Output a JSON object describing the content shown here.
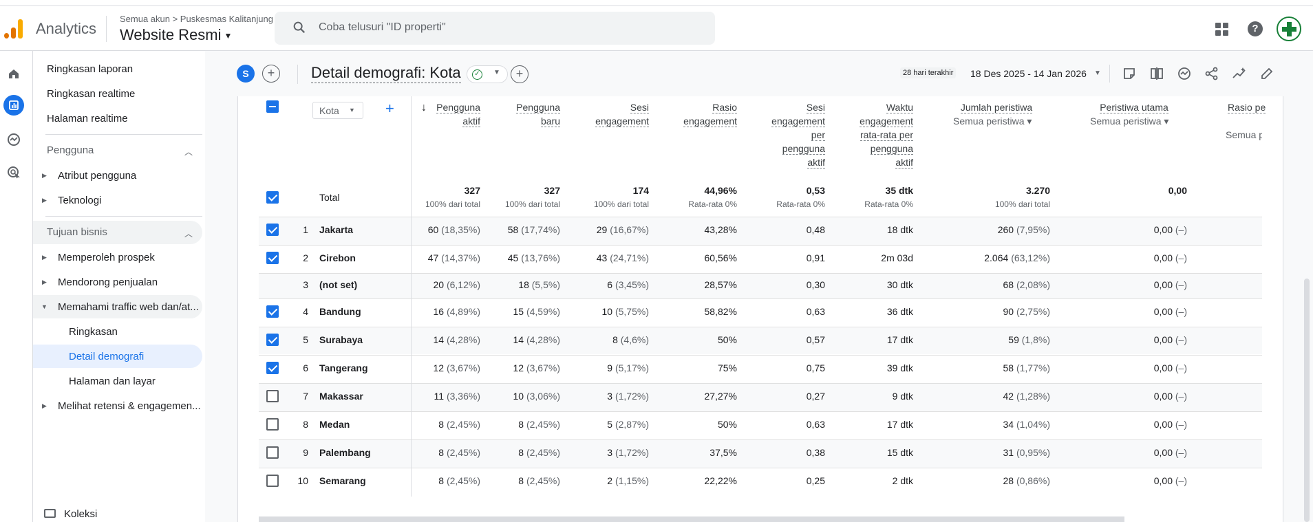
{
  "header": {
    "brand": "Analytics",
    "breadcrumb": "Semua akun > Puskesmas Kalitanjung",
    "property": "Website Resmi",
    "search_placeholder": "Coba telusuri \"ID properti\""
  },
  "nav": {
    "items_top": [
      "Ringkasan laporan",
      "Ringkasan realtime",
      "Halaman realtime"
    ],
    "section_pengguna": "Pengguna",
    "pengguna_items": [
      "Atribut pengguna",
      "Teknologi"
    ],
    "section_bisnis": "Tujuan bisnis",
    "bisnis_items": [
      "Memperoleh prospek",
      "Mendorong penjualan",
      "Memahami traffic web dan/at..."
    ],
    "traffic_subitems": [
      "Ringkasan",
      "Detail demografi",
      "Halaman dan layar"
    ],
    "retensi": "Melihat retensi & engagemen...",
    "koleksi": "Koleksi"
  },
  "toolbar": {
    "segment_initial": "S",
    "title": "Detail demografi: Kota",
    "date_chip": "28 hari terakhir",
    "date_range": "18 Des 2025 - 14 Jan 2026"
  },
  "table": {
    "dimension": "Kota",
    "headers": {
      "c1": [
        "Pengguna",
        "aktif"
      ],
      "c2": [
        "Pengguna",
        "baru"
      ],
      "c3": [
        "Sesi",
        "engagement"
      ],
      "c4": [
        "Rasio",
        "engagement"
      ],
      "c5": [
        "Sesi",
        "engagement",
        "per",
        "pengguna",
        "aktif"
      ],
      "c6": [
        "Waktu",
        "engagement",
        "rata-rata per",
        "pengguna",
        "aktif"
      ],
      "c7": [
        "Jumlah peristiwa"
      ],
      "c8": [
        "Peristiwa utama"
      ],
      "c9": [
        "Rasio pe"
      ]
    },
    "dropdowns": {
      "c7": "Semua peristiwa",
      "c8": "Semua peristiwa",
      "c9": "Semua p"
    },
    "total_label": "Total",
    "totals": [
      {
        "v": "327",
        "s": "100% dari total"
      },
      {
        "v": "327",
        "s": "100% dari total"
      },
      {
        "v": "174",
        "s": "100% dari total"
      },
      {
        "v": "44,96%",
        "s": "Rata-rata 0%"
      },
      {
        "v": "0,53",
        "s": "Rata-rata 0%"
      },
      {
        "v": "35 dtk",
        "s": "Rata-rata 0%"
      },
      {
        "v": "3.270",
        "s": "100% dari total"
      },
      {
        "v": "0,00",
        "s": ""
      }
    ],
    "rows": [
      {
        "idx": "1",
        "city": "Jakarta",
        "checked": true,
        "c1": "60",
        "p1": "(18,35%)",
        "c2": "58",
        "p2": "(17,74%)",
        "c3": "29",
        "p3": "(16,67%)",
        "c4": "43,28%",
        "c5": "0,48",
        "c6": "18 dtk",
        "c7": "260",
        "p7": "(7,95%)",
        "c8": "0,00",
        "p8": "(–)"
      },
      {
        "idx": "2",
        "city": "Cirebon",
        "checked": true,
        "c1": "47",
        "p1": "(14,37%)",
        "c2": "45",
        "p2": "(13,76%)",
        "c3": "43",
        "p3": "(24,71%)",
        "c4": "60,56%",
        "c5": "0,91",
        "c6": "2m 03d",
        "c7": "2.064",
        "p7": "(63,12%)",
        "c8": "0,00",
        "p8": "(–)"
      },
      {
        "idx": "3",
        "city": "(not set)",
        "checked": null,
        "c1": "20",
        "p1": "(6,12%)",
        "c2": "18",
        "p2": "(5,5%)",
        "c3": "6",
        "p3": "(3,45%)",
        "c4": "28,57%",
        "c5": "0,30",
        "c6": "30 dtk",
        "c7": "68",
        "p7": "(2,08%)",
        "c8": "0,00",
        "p8": "(–)"
      },
      {
        "idx": "4",
        "city": "Bandung",
        "checked": true,
        "c1": "16",
        "p1": "(4,89%)",
        "c2": "15",
        "p2": "(4,59%)",
        "c3": "10",
        "p3": "(5,75%)",
        "c4": "58,82%",
        "c5": "0,63",
        "c6": "36 dtk",
        "c7": "90",
        "p7": "(2,75%)",
        "c8": "0,00",
        "p8": "(–)"
      },
      {
        "idx": "5",
        "city": "Surabaya",
        "checked": true,
        "c1": "14",
        "p1": "(4,28%)",
        "c2": "14",
        "p2": "(4,28%)",
        "c3": "8",
        "p3": "(4,6%)",
        "c4": "50%",
        "c5": "0,57",
        "c6": "17 dtk",
        "c7": "59",
        "p7": "(1,8%)",
        "c8": "0,00",
        "p8": "(–)"
      },
      {
        "idx": "6",
        "city": "Tangerang",
        "checked": true,
        "c1": "12",
        "p1": "(3,67%)",
        "c2": "12",
        "p2": "(3,67%)",
        "c3": "9",
        "p3": "(5,17%)",
        "c4": "75%",
        "c5": "0,75",
        "c6": "39 dtk",
        "c7": "58",
        "p7": "(1,77%)",
        "c8": "0,00",
        "p8": "(–)"
      },
      {
        "idx": "7",
        "city": "Makassar",
        "checked": false,
        "c1": "11",
        "p1": "(3,36%)",
        "c2": "10",
        "p2": "(3,06%)",
        "c3": "3",
        "p3": "(1,72%)",
        "c4": "27,27%",
        "c5": "0,27",
        "c6": "9 dtk",
        "c7": "42",
        "p7": "(1,28%)",
        "c8": "0,00",
        "p8": "(–)"
      },
      {
        "idx": "8",
        "city": "Medan",
        "checked": false,
        "c1": "8",
        "p1": "(2,45%)",
        "c2": "8",
        "p2": "(2,45%)",
        "c3": "5",
        "p3": "(2,87%)",
        "c4": "50%",
        "c5": "0,63",
        "c6": "17 dtk",
        "c7": "34",
        "p7": "(1,04%)",
        "c8": "0,00",
        "p8": "(–)"
      },
      {
        "idx": "9",
        "city": "Palembang",
        "checked": false,
        "c1": "8",
        "p1": "(2,45%)",
        "c2": "8",
        "p2": "(2,45%)",
        "c3": "3",
        "p3": "(1,72%)",
        "c4": "37,5%",
        "c5": "0,38",
        "c6": "15 dtk",
        "c7": "31",
        "p7": "(0,95%)",
        "c8": "0,00",
        "p8": "(–)"
      },
      {
        "idx": "10",
        "city": "Semarang",
        "checked": false,
        "c1": "8",
        "p1": "(2,45%)",
        "c2": "8",
        "p2": "(2,45%)",
        "c3": "2",
        "p3": "(1,15%)",
        "c4": "22,22%",
        "c5": "0,25",
        "c6": "2 dtk",
        "c7": "28",
        "p7": "(0,86%)",
        "c8": "0,00",
        "p8": "(–)"
      }
    ]
  },
  "colors": {
    "accent": "#1a73e8",
    "brand_orange": "#e37400",
    "brand_yellow": "#f9ab00",
    "active_nav_bg": "#e8f0fe",
    "success": "#188038"
  },
  "icons": [
    "search-icon",
    "apps-icon",
    "help-icon",
    "home-icon",
    "reports-icon",
    "explore-icon",
    "advertising-icon",
    "folder-icon",
    "share-icon",
    "insights-icon",
    "edit-icon",
    "compare-icon",
    "customize-icon",
    "check-circle-icon"
  ]
}
